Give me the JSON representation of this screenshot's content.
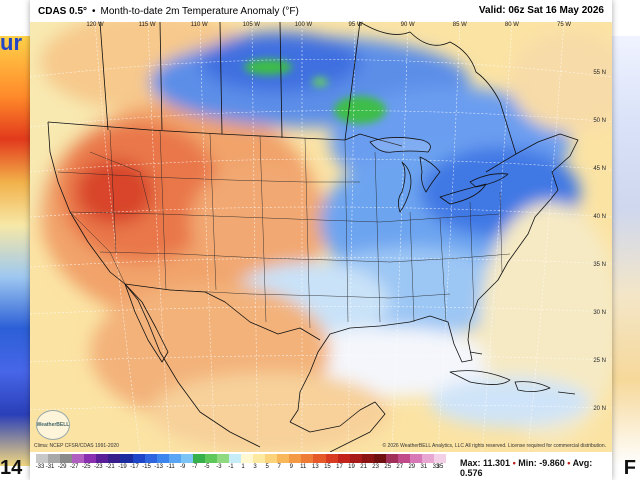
{
  "side": {
    "left_fragment": "ur",
    "bottom_left_fragment": "14",
    "bottom_right_fragment": "F"
  },
  "header": {
    "model": "CDAS 0.5°",
    "bullet": "•",
    "description": "Month-to-date 2m Temperature Anomaly (°F)",
    "valid": "Valid: 06z Sat 16 May 2026"
  },
  "longitudes": [
    "120 W",
    "115 W",
    "110 W",
    "105 W",
    "100 W",
    "95 W",
    "90 W",
    "85 W",
    "80 W",
    "75 W"
  ],
  "latitudes": [
    "55 N",
    "50 N",
    "45 N",
    "40 N",
    "35 N",
    "30 N",
    "25 N",
    "20 N"
  ],
  "source": "Clima: NCEP CFSR/CDAS 1991-2020",
  "copyright": "© 2026 WeatherBELL Analytics, LLC All rights reserved. License required for commercial distribution.",
  "logo_text": "WeatherBELL",
  "legend": {
    "labels": [
      "-33",
      "-31",
      "-29",
      "-27",
      "-25",
      "-23",
      "-21",
      "-19",
      "-17",
      "-15",
      "-13",
      "-11",
      "-9",
      "-7",
      "-5",
      "-3",
      "-1",
      "1",
      "3",
      "5",
      "7",
      "9",
      "11",
      "13",
      "15",
      "17",
      "19",
      "21",
      "23",
      "25",
      "27",
      "29",
      "31",
      "33",
      "35"
    ],
    "colors": [
      "#c8c8c8",
      "#a8a8a8",
      "#8a8a8a",
      "#b05fc0",
      "#8a2fb0",
      "#5b1e98",
      "#3a1d8c",
      "#1d2ba0",
      "#1f46c8",
      "#2f66e0",
      "#3d86ee",
      "#5aa6f4",
      "#7cc4f6",
      "#35b04a",
      "#5ec85a",
      "#8fda80",
      "#c6ecf8",
      "#fff8d0",
      "#fde9a0",
      "#fbd37a",
      "#f8b85a",
      "#f49a44",
      "#ee7b36",
      "#e65a2a",
      "#d83a22",
      "#c2241c",
      "#a81a1a",
      "#8c1414",
      "#701010",
      "#a0305a",
      "#c04a8a",
      "#d878b6",
      "#e8a6d2",
      "#f4cfe8"
    ]
  },
  "stats": {
    "max": "Max: 11.301",
    "min": "Min: -9.860",
    "avg": "Avg: 0.576",
    "sep": "•"
  }
}
